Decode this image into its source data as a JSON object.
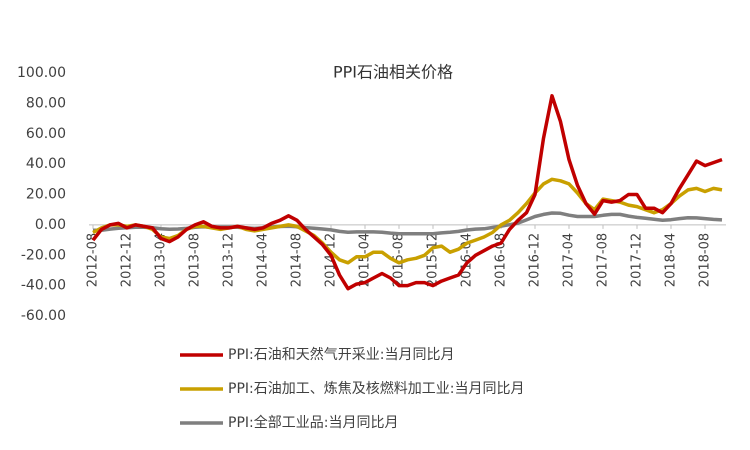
{
  "chart_data": {
    "type": "line",
    "title": "PPI石油相关价格",
    "categories": [
      "2012-08",
      null,
      null,
      null,
      "2012-12",
      null,
      null,
      null,
      "2013-04",
      null,
      null,
      null,
      "2013-08",
      null,
      null,
      null,
      "2013-12",
      null,
      null,
      null,
      "2014-04",
      null,
      null,
      null,
      "2014-08",
      null,
      null,
      null,
      "2014-12",
      null,
      null,
      null,
      "2015-04",
      null,
      null,
      null,
      "2015-08",
      null,
      null,
      null,
      "2015-12",
      null,
      null,
      null,
      "2016-04",
      null,
      null,
      null,
      "2016-08",
      null,
      null,
      null,
      "2016-12",
      null,
      null,
      null,
      "2017-04",
      null,
      null,
      null,
      "2017-08",
      null,
      null,
      null,
      "2017-12",
      null,
      null,
      null,
      "2018-04",
      null,
      null,
      null,
      "2018-08",
      null,
      null
    ],
    "series": [
      {
        "name": "PPI:石油和天然气开采业:当月同比月",
        "color": "#c00000",
        "values": [
          -10,
          -3,
          0,
          1,
          -2,
          0,
          -1,
          -2,
          -9,
          -11,
          -8,
          -3,
          0,
          2,
          -1,
          -2,
          -2,
          -1,
          -2,
          -3,
          -2,
          1,
          3,
          6,
          3,
          -3,
          -8,
          -13,
          -20,
          -33,
          -42,
          -39,
          -38,
          -35,
          -32,
          -35,
          -40,
          -40,
          -38,
          -38,
          -40,
          -37,
          -35,
          -33,
          -25,
          -20,
          -17,
          -14,
          -12,
          -3,
          3,
          8,
          20,
          57,
          85,
          68,
          43,
          26,
          14,
          7,
          16,
          15,
          16,
          20,
          20,
          11,
          11,
          8,
          14,
          24,
          33,
          42,
          39,
          41,
          43
        ]
      },
      {
        "name": "PPI:石油加工、炼焦及核燃料加工业:当月同比月",
        "color": "#c9a000",
        "values": [
          -5,
          -2,
          0,
          0,
          -1,
          0,
          -1,
          -3,
          -8,
          -9,
          -7,
          -3,
          -1,
          -1,
          -2,
          -3,
          -2,
          -1,
          -3,
          -4,
          -3,
          -2,
          -1,
          0,
          -1,
          -4,
          -7,
          -12,
          -18,
          -23,
          -25,
          -21,
          -21,
          -18,
          -18,
          -22,
          -25,
          -23,
          -22,
          -20,
          -15,
          -14,
          -18,
          -16,
          -12,
          -10,
          -8,
          -5,
          0,
          3,
          8,
          14,
          21,
          27,
          30,
          29,
          27,
          21,
          14,
          10,
          17,
          16,
          15,
          13,
          12,
          10,
          8,
          10,
          14,
          19,
          23,
          24,
          22,
          24,
          23
        ]
      },
      {
        "name": "PPI:全部工业品:当月同比月",
        "color": "#7f7f7f",
        "values": [
          -3.5,
          -3.6,
          -2.8,
          -2.2,
          -1.9,
          -1.6,
          -1.6,
          -1.9,
          -2.6,
          -2.9,
          -2.7,
          -2.3,
          -1.6,
          -1.3,
          -1.5,
          -1.4,
          -1.4,
          -1.6,
          -2.0,
          -2.3,
          -2.0,
          -1.4,
          -1.1,
          -0.9,
          -1.2,
          -1.8,
          -2.2,
          -2.7,
          -3.3,
          -4.3,
          -4.8,
          -4.6,
          -4.6,
          -4.6,
          -4.8,
          -5.4,
          -5.9,
          -5.9,
          -5.9,
          -5.9,
          -5.9,
          -5.3,
          -4.9,
          -4.3,
          -3.4,
          -2.8,
          -2.6,
          -1.7,
          -0.8,
          0.1,
          1.2,
          3.3,
          5.5,
          6.9,
          7.8,
          7.6,
          6.4,
          5.5,
          5.5,
          5.5,
          6.3,
          6.9,
          6.9,
          5.8,
          4.9,
          4.3,
          3.7,
          3.1,
          3.4,
          4.1,
          4.7,
          4.6,
          4.1,
          3.6,
          3.3
        ]
      }
    ],
    "ylim": [
      -60,
      100
    ],
    "yticks": [
      {
        "value": -60,
        "label": "-60.00"
      },
      {
        "value": -40,
        "label": "-40.00"
      },
      {
        "value": -20,
        "label": "-20.00"
      },
      {
        "value": 0,
        "label": "0.00"
      },
      {
        "value": 20,
        "label": "20.00"
      },
      {
        "value": 40,
        "label": "40.00"
      },
      {
        "value": 60,
        "label": "60.00"
      },
      {
        "value": 80,
        "label": "80.00"
      },
      {
        "value": 100,
        "label": "100.00"
      }
    ],
    "grid": false
  }
}
